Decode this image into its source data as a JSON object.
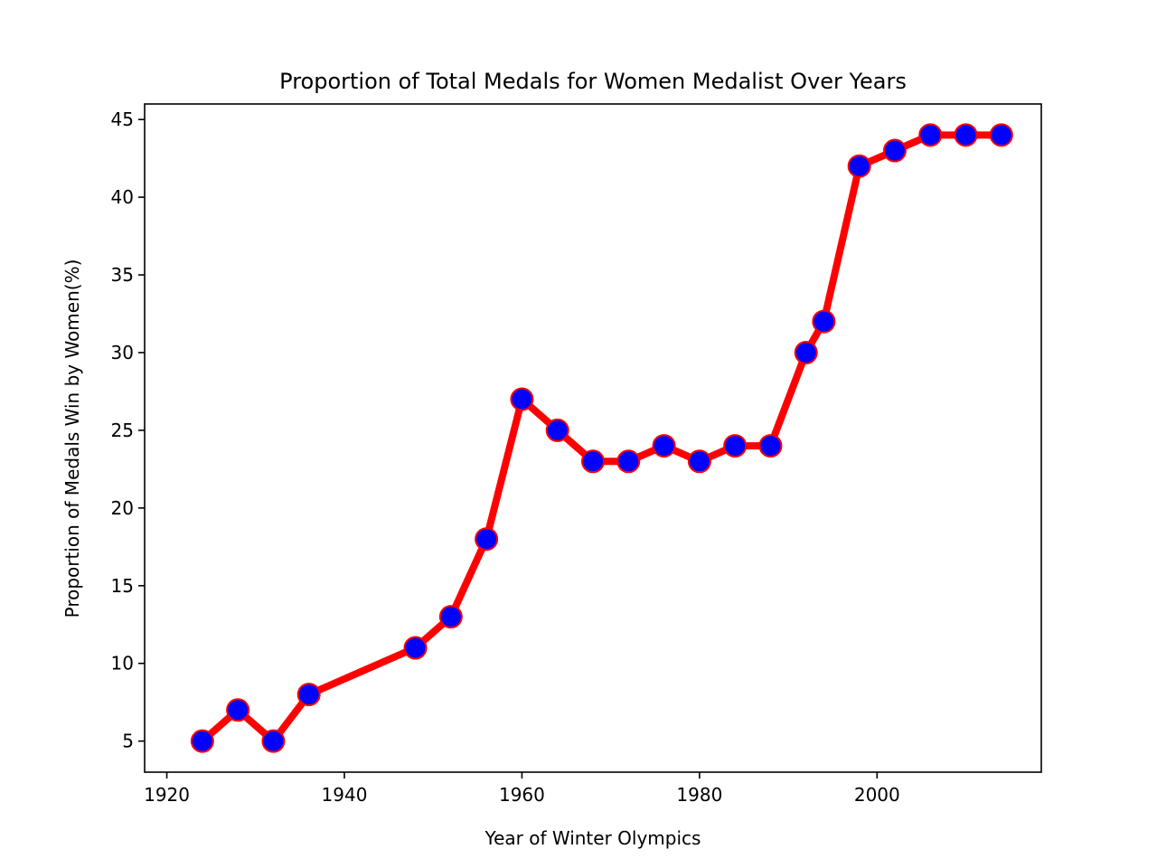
{
  "chart_data": {
    "type": "line",
    "title": "Proportion of Total Medals for Women Medalist Over Years",
    "xlabel": "Year of Winter Olympics",
    "ylabel": "Proportion of  Medals Win by Women(%)",
    "xlim": [
      1917.5,
      2018.5
    ],
    "ylim": [
      3,
      46
    ],
    "xticks": [
      1920,
      1940,
      1960,
      1980,
      2000
    ],
    "yticks": [
      5,
      10,
      15,
      20,
      25,
      30,
      35,
      40,
      45
    ],
    "grid": false,
    "series": [
      {
        "x": [
          1924,
          1928,
          1932,
          1936,
          1948,
          1952,
          1956,
          1960,
          1964,
          1968,
          1972,
          1976,
          1980,
          1984,
          1988,
          1992,
          1994,
          1998,
          2002,
          2006,
          2010,
          2014
        ],
        "y": [
          5,
          7,
          5,
          8,
          11,
          13,
          18,
          27,
          25,
          23,
          23,
          24,
          23,
          24,
          24,
          30,
          32,
          42,
          43,
          44,
          44,
          44
        ],
        "line_color": "#ff0000",
        "marker_face_color": "#0000ff",
        "marker_edge_color": "#ff0000",
        "marker": "circle"
      }
    ]
  }
}
